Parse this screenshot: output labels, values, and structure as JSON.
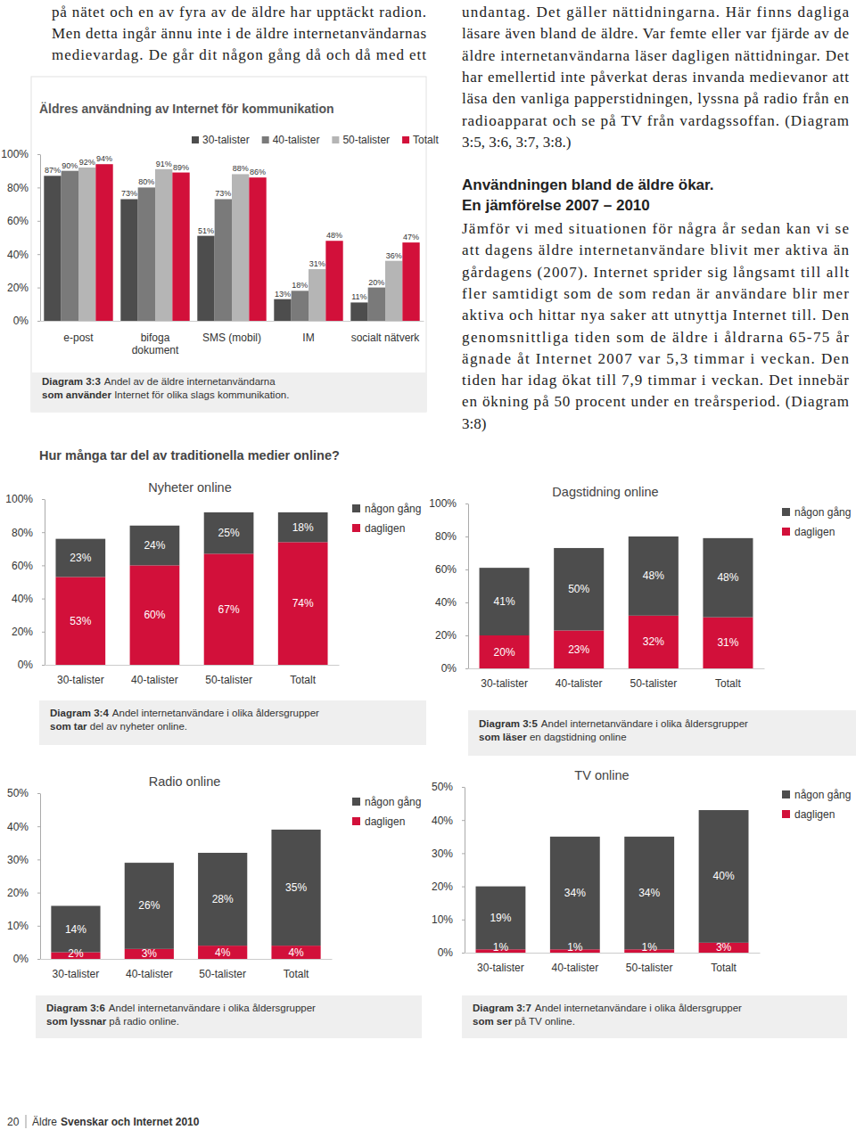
{
  "page": {
    "intro_lines": [
      "på nätet och en av fyra av de äldre har upptäckt radion.",
      "Men detta ingår ännu inte i de äldre internetanvändarnas",
      "medievardag. De går dit någon gång då och då med ett"
    ],
    "right_lines": [
      "undantag. Det gäller nättidningarna. Här finns dagliga",
      "läsare även bland de äldre. Var femte eller var fjärde av de",
      "äldre internetanvändarna läser dagligen nättidningar. Det",
      "har emellertid inte påverkat deras invanda medievanor att",
      "läsa den vanliga papperstidningen, lyssna på radio från en",
      "radioapparat och se på TV från vardagssoffan. (Diagram",
      "3:5, 3:6, 3:7, 3:8.)"
    ],
    "heading": [
      "Användningen bland de äldre ökar.",
      "En jämförelse 2007 – 2010"
    ],
    "body_lines": [
      "Jämför vi med situationen för några år sedan kan vi se",
      "att dagens äldre internetanvändare blivit mer aktiva än",
      "gårdagens (2007). Internet sprider sig långsamt till allt",
      "fler samtidigt som de som redan är användare blir mer",
      "aktiva och hittar nya saker att utnyttja Internet till. Den",
      "genomsnittliga tiden som de äldre i åldrarna 65-75 år",
      "ägnade åt Internet 2007 var 5,3 timmar i veckan. Den",
      "tiden har idag ökat till 7,9 timmar i veckan. Det innebär",
      "en ökning på 50 procent under en treårsperiod. (Diagram",
      "3:8)"
    ],
    "section_heading": "Hur många tar del av traditionella medier online?",
    "footer": {
      "page_number": "20",
      "title_plain": "Äldre",
      "title_bold": "Svenskar och Internet 2010"
    }
  },
  "chart_data": [
    {
      "type": "bar",
      "title": "Äldres användning av Internet för kommunikation",
      "categories": [
        "e-post",
        "bifoga\ndokument",
        "SMS (mobil)",
        "IM",
        "socialt nätverk"
      ],
      "series": [
        {
          "name": "30-talister",
          "color": "#4d4d4d",
          "values": [
            87,
            73,
            51,
            13,
            11
          ],
          "value_labels": [
            "87%",
            "73%",
            "51%",
            "13%",
            "11%"
          ]
        },
        {
          "name": "40-talister",
          "color": "#7a7a7a",
          "values": [
            90,
            80,
            73,
            18,
            20
          ],
          "value_labels": [
            "90%",
            "80%",
            "73%",
            "18%",
            "20%"
          ]
        },
        {
          "name": "50-talister",
          "color": "#b5b5b5",
          "values": [
            92,
            91,
            88,
            31,
            36
          ],
          "value_labels": [
            "92%",
            "91%",
            "88%",
            "31%",
            "36%"
          ]
        },
        {
          "name": "Totalt",
          "color": "#d2103a",
          "values": [
            94,
            89,
            86,
            48,
            47
          ],
          "value_labels": [
            "94%",
            "89%",
            "86%",
            "48%",
            "47%"
          ]
        }
      ],
      "ylim": [
        0,
        100
      ],
      "yticks": [
        {
          "value": 0,
          "label": "0%"
        },
        {
          "value": 20,
          "label": "20%"
        },
        {
          "value": 40,
          "label": "40%"
        },
        {
          "value": 60,
          "label": "60%"
        },
        {
          "value": 80,
          "label": "80%"
        },
        {
          "value": 100,
          "label": "100%"
        }
      ],
      "data_labels": true,
      "legend": "top",
      "caption": {
        "label": "Diagram 3:3",
        "lines": [
          "Andel av de äldre internetanvändarna",
          "som använder Internet för olika slags kommunikation."
        ]
      }
    },
    {
      "type": "bar",
      "title": "Nyheter online",
      "stacked": true,
      "categories": [
        "30-talister",
        "40-talister",
        "50-talister",
        "Totalt"
      ],
      "series": [
        {
          "name": "dagligen",
          "color": "#d2103a",
          "values": [
            53,
            60,
            67,
            74
          ],
          "value_labels": [
            "53%",
            "60%",
            "67%",
            "74%"
          ]
        },
        {
          "name": "någon gång",
          "color": "#4d4d4d",
          "values": [
            23,
            24,
            25,
            18
          ],
          "value_labels": [
            "23%",
            "24%",
            "25%",
            "18%"
          ]
        }
      ],
      "ylim": [
        0,
        100
      ],
      "yticks": [
        {
          "value": 0,
          "label": "0%"
        },
        {
          "value": 20,
          "label": "20%"
        },
        {
          "value": 40,
          "label": "40%"
        },
        {
          "value": 60,
          "label": "60%"
        },
        {
          "value": 80,
          "label": "80%"
        },
        {
          "value": 100,
          "label": "100%"
        }
      ],
      "data_labels": true,
      "legend": "right",
      "caption": {
        "label": "Diagram 3:4",
        "lines": [
          "Andel internetanvändare i olika åldersgrupper",
          "som tar del av nyheter online."
        ]
      }
    },
    {
      "type": "bar",
      "title": "Dagstidning online",
      "stacked": true,
      "categories": [
        "30-talister",
        "40-talister",
        "50-talister",
        "Totalt"
      ],
      "series": [
        {
          "name": "dagligen",
          "color": "#d2103a",
          "values": [
            20,
            23,
            32,
            31
          ],
          "value_labels": [
            "20%",
            "23%",
            "32%",
            "31%"
          ]
        },
        {
          "name": "någon gång",
          "color": "#4d4d4d",
          "values": [
            41,
            50,
            48,
            48
          ],
          "value_labels": [
            "41%",
            "50%",
            "48%",
            "48%"
          ]
        }
      ],
      "ylim": [
        0,
        100
      ],
      "yticks": [
        {
          "value": 0,
          "label": "0%"
        },
        {
          "value": 20,
          "label": "20%"
        },
        {
          "value": 40,
          "label": "40%"
        },
        {
          "value": 60,
          "label": "60%"
        },
        {
          "value": 80,
          "label": "80%"
        },
        {
          "value": 100,
          "label": "100%"
        }
      ],
      "data_labels": true,
      "legend": "right",
      "caption": {
        "label": "Diagram 3:5",
        "lines": [
          "Andel internetanvändare i olika åldersgrupper",
          "som läser en dagstidning online"
        ]
      }
    },
    {
      "type": "bar",
      "title": "Radio online",
      "stacked": true,
      "categories": [
        "30-talister",
        "40-talister",
        "50-talister",
        "Totalt"
      ],
      "series": [
        {
          "name": "dagligen",
          "color": "#d2103a",
          "values": [
            2,
            3,
            4,
            4
          ],
          "value_labels": [
            "2%",
            "3%",
            "4%",
            "4%"
          ]
        },
        {
          "name": "någon gång",
          "color": "#4d4d4d",
          "values": [
            14,
            26,
            28,
            35
          ],
          "value_labels": [
            "14%",
            "26%",
            "28%",
            "35%"
          ]
        }
      ],
      "ylim": [
        0,
        50
      ],
      "yticks": [
        {
          "value": 0,
          "label": "0%"
        },
        {
          "value": 10,
          "label": "10%"
        },
        {
          "value": 20,
          "label": "20%"
        },
        {
          "value": 30,
          "label": "30%"
        },
        {
          "value": 40,
          "label": "40%"
        },
        {
          "value": 50,
          "label": "50%"
        }
      ],
      "data_labels": true,
      "legend": "right",
      "caption": {
        "label": "Diagram 3:6",
        "lines": [
          "Andel internetanvändare i olika åldersgrupper",
          "som lyssnar på radio online."
        ]
      }
    },
    {
      "type": "bar",
      "title": "TV online",
      "stacked": true,
      "categories": [
        "30-talister",
        "40-talister",
        "50-talister",
        "Totalt"
      ],
      "series": [
        {
          "name": "dagligen",
          "color": "#d2103a",
          "values": [
            1,
            1,
            1,
            3
          ],
          "value_labels": [
            "1%",
            "1%",
            "1%",
            "3%"
          ]
        },
        {
          "name": "någon gång",
          "color": "#4d4d4d",
          "values": [
            19,
            34,
            34,
            40
          ],
          "value_labels": [
            "19%",
            "34%",
            "34%",
            "40%"
          ]
        }
      ],
      "ylim": [
        0,
        50
      ],
      "yticks": [
        {
          "value": 0,
          "label": "0%"
        },
        {
          "value": 10,
          "label": "10%"
        },
        {
          "value": 20,
          "label": "20%"
        },
        {
          "value": 30,
          "label": "30%"
        },
        {
          "value": 40,
          "label": "40%"
        },
        {
          "value": 50,
          "label": "50%"
        }
      ],
      "data_labels": true,
      "legend": "right",
      "caption": {
        "label": "Diagram 3:7",
        "lines": [
          "Andel internetanvändare i olika åldersgrupper",
          "som ser på TV online."
        ]
      }
    }
  ]
}
